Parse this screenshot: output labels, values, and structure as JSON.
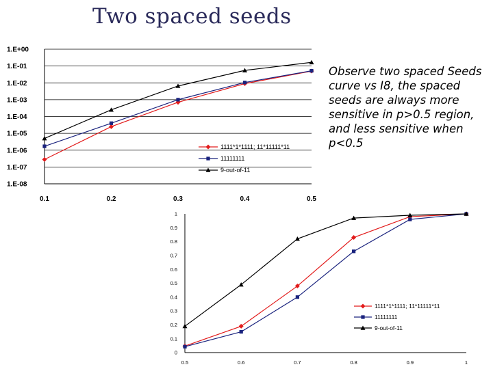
{
  "slide": {
    "title": "Two spaced seeds",
    "note": "Observe two spaced Seeds curve vs I8, the spaced seeds are always more sensitive in p>0.5 region, and less sensitive when p<0.5"
  },
  "colors": {
    "red_series": "#e21b1b",
    "blue_series": "#1a237e",
    "black_series": "#000000",
    "gridline": "#000000"
  },
  "chart_data": [
    {
      "type": "line",
      "scale": "log",
      "x": [
        0.1,
        0.2,
        0.3,
        0.4,
        0.5
      ],
      "ylim": [
        1e-08,
        1
      ],
      "y_ticks": [
        "1.E-08",
        "1.E-07",
        "1.E-06",
        "1.E-05",
        "1.E-04",
        "1.E-03",
        "1.E-02",
        "1.E-01",
        "1.E+00"
      ],
      "x_ticks": [
        "0.1",
        "0.2",
        "0.3",
        "0.4",
        "0.5"
      ],
      "grid": true,
      "legend_position": "bottom-right",
      "series": [
        {
          "name": "1111*1*1111; 11*11111*11",
          "color": "red",
          "marker": "diamond",
          "values": [
            2.8e-07,
            2.5e-05,
            0.0007,
            0.009,
            0.05
          ]
        },
        {
          "name": "11111111",
          "color": "blue",
          "marker": "square",
          "values": [
            1.7e-06,
            4e-05,
            0.001,
            0.0105,
            0.052
          ]
        },
        {
          "name": "9-out-of-11",
          "color": "black",
          "marker": "triangle",
          "values": [
            5e-06,
            0.00025,
            0.0065,
            0.055,
            0.165
          ]
        }
      ]
    },
    {
      "type": "line",
      "x": [
        0.5,
        0.6,
        0.7,
        0.8,
        0.9,
        1.0
      ],
      "ylim": [
        0,
        1
      ],
      "y_ticks": [
        "0",
        "0.1",
        "0.2",
        "0.3",
        "0.4",
        "0.5",
        "0.6",
        "0.7",
        "0.8",
        "0.9",
        "1"
      ],
      "x_ticks": [
        "0.5",
        "0.6",
        "0.7",
        "0.8",
        "0.9",
        "1"
      ],
      "grid": false,
      "legend_position": "bottom-right",
      "series": [
        {
          "name": "1111*1*1111; 11*11111*11",
          "color": "red",
          "marker": "diamond",
          "values": [
            0.047,
            0.19,
            0.48,
            0.83,
            0.98,
            1.0
          ]
        },
        {
          "name": "11111111",
          "color": "blue",
          "marker": "square",
          "values": [
            0.043,
            0.15,
            0.4,
            0.73,
            0.96,
            1.0
          ]
        },
        {
          "name": "9-out-of-11",
          "color": "black",
          "marker": "triangle",
          "values": [
            0.19,
            0.49,
            0.82,
            0.97,
            0.99,
            1.0
          ]
        }
      ]
    }
  ]
}
